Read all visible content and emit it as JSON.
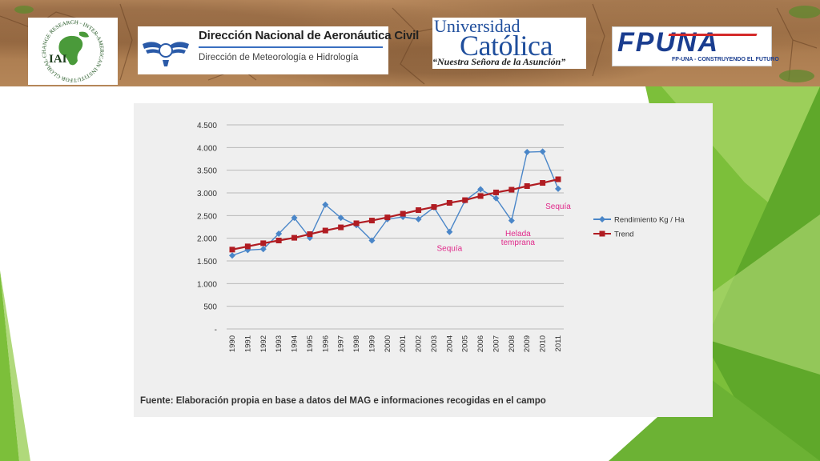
{
  "header": {
    "logos": [
      {
        "id": "iai",
        "text": "IAI",
        "ring_text": "FOR GLOBAL CHANGE RESEARCH · INTER-AMERICAN INSTITUTE",
        "icon": "iai-globe-icon"
      },
      {
        "id": "dinac",
        "title": "Dirección Nacional de Aeronáutica Civil",
        "subtitle": "Dirección de Meteorología e Hidrología",
        "icon": "dinac-wings-icon"
      },
      {
        "id": "uc",
        "line1": "Universidad",
        "line2": "Católica",
        "line3": "“Nuestra Señora de la Asunción”"
      },
      {
        "id": "fpuna",
        "mark": "FPUNA",
        "tagline": "FP-UNA - CONSTRUYENDO EL FUTURO"
      }
    ],
    "colors": {
      "uc_blue": "#1f4e9c",
      "fpuna_blue": "#1a3d8f",
      "fpuna_red": "#d42a2a",
      "dinac_blue": "#2a5aa8"
    }
  },
  "chart_data": {
    "type": "line",
    "x": [
      "1990",
      "1991",
      "1992",
      "1993",
      "1994",
      "1995",
      "1996",
      "1997",
      "1998",
      "1999",
      "2000",
      "2001",
      "2002",
      "2003",
      "2004",
      "2005",
      "2006",
      "2007",
      "2008",
      "2009",
      "2010",
      "2011"
    ],
    "series": [
      {
        "name": "Rendimiento Kg / Ha",
        "color": "#4a86c8",
        "marker": "diamond",
        "values": [
          1620,
          1740,
          1760,
          2100,
          2450,
          2010,
          2740,
          2450,
          2290,
          1950,
          2420,
          2470,
          2420,
          2680,
          2140,
          2830,
          3080,
          2880,
          2390,
          3900,
          3910,
          3090
        ]
      },
      {
        "name": "Trend",
        "color": "#b01c22",
        "marker": "square",
        "values": [
          1750,
          1820,
          1890,
          1950,
          2010,
          2090,
          2170,
          2240,
          2330,
          2390,
          2460,
          2540,
          2620,
          2690,
          2780,
          2840,
          2930,
          3010,
          3070,
          3150,
          3220,
          3300
        ]
      }
    ],
    "yticks": [
      "4.500",
      "4.000",
      "3.500",
      "3.000",
      "2.500",
      "2.000",
      "1.500",
      "1.000",
      "500",
      "-"
    ],
    "ylim": [
      0,
      4500
    ],
    "grid": true,
    "legend": "right",
    "annotations": [
      {
        "text": "Sequía",
        "x": "2004",
        "y": 1720
      },
      {
        "text": "Helada temprana",
        "x": "2008",
        "y": 2050
      },
      {
        "text": "Sequía",
        "x": "2011",
        "y": 2650
      }
    ],
    "annotation_color": "#e0298a",
    "source": "Fuente: Elaboración propia en base a datos del MAG e informaciones recogidas en el campo"
  }
}
